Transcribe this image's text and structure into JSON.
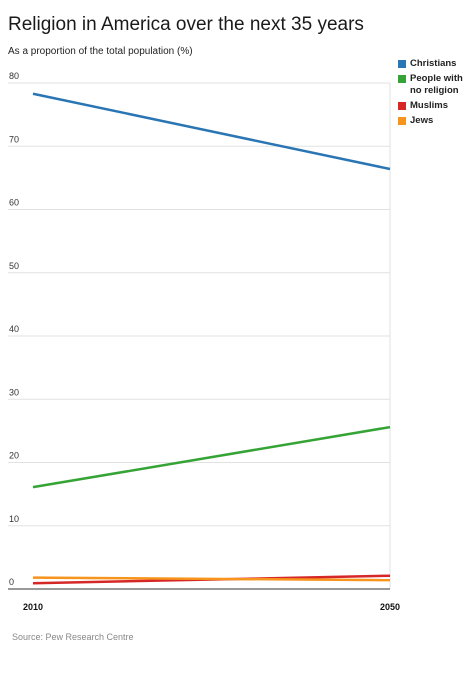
{
  "chart_data": {
    "type": "line",
    "title": "Religion in America over the next 35 years",
    "subtitle": "As a proportion of the total population (%)",
    "x": [
      "2010",
      "2050"
    ],
    "ylim": [
      0,
      80
    ],
    "yticks": [
      0,
      10,
      20,
      30,
      40,
      50,
      60,
      70,
      80
    ],
    "grid": true,
    "legend_position": "top-right",
    "series": [
      {
        "name": "Christians",
        "color": "#2a75b3",
        "values": [
          78.3,
          66.4
        ]
      },
      {
        "name": "People with no religion",
        "color": "#36a336",
        "values": [
          16.1,
          25.6
        ]
      },
      {
        "name": "Muslims",
        "color": "#d62728",
        "values": [
          0.9,
          2.1
        ]
      },
      {
        "name": "Jews",
        "color": "#f7941d",
        "values": [
          1.8,
          1.4
        ]
      }
    ],
    "source": "Source: Pew Research Centre"
  }
}
